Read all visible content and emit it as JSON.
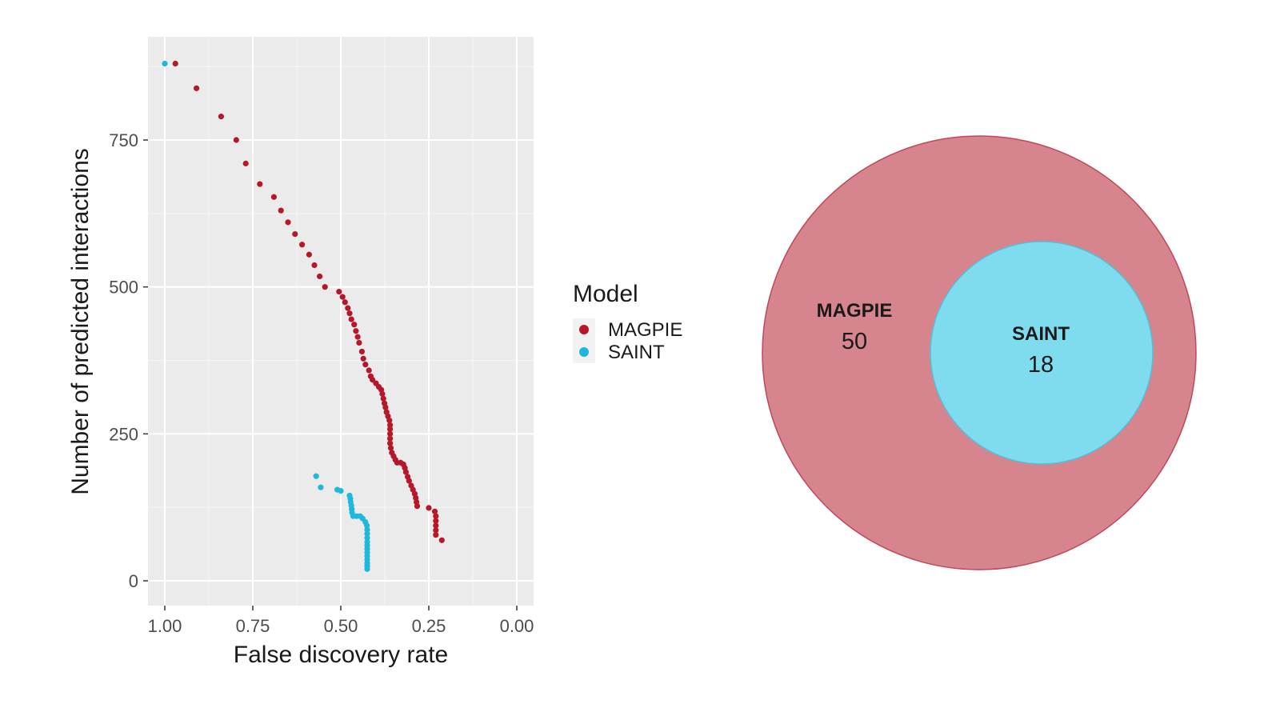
{
  "chart_data": [
    {
      "type": "scatter",
      "xlabel": "False discovery rate",
      "ylabel": "Number of predicted interactions",
      "xlim": [
        1.0,
        0.0
      ],
      "x_reversed": true,
      "ylim": [
        0,
        900
      ],
      "x_ticks": [
        1.0,
        0.75,
        0.5,
        0.25,
        0.0
      ],
      "x_tick_labels": [
        "1.00",
        "0.75",
        "0.50",
        "0.25",
        "0.00"
      ],
      "y_ticks": [
        0,
        250,
        500,
        750
      ],
      "y_tick_labels": [
        "0",
        "250",
        "500",
        "750"
      ],
      "grid": true,
      "legend_title": "Model",
      "legend_position": "right",
      "series": [
        {
          "name": "MAGPIE",
          "color": "#b5182b",
          "points": [
            [
              0.97,
              880
            ],
            [
              0.91,
              838
            ],
            [
              0.84,
              790
            ],
            [
              0.797,
              750
            ],
            [
              0.77,
              710
            ],
            [
              0.73,
              675
            ],
            [
              0.69,
              653
            ],
            [
              0.67,
              630
            ],
            [
              0.65,
              610
            ],
            [
              0.63,
              590
            ],
            [
              0.61,
              572
            ],
            [
              0.59,
              555
            ],
            [
              0.575,
              537
            ],
            [
              0.56,
              518
            ],
            [
              0.545,
              500
            ],
            [
              0.505,
              492
            ],
            [
              0.495,
              483
            ],
            [
              0.488,
              474
            ],
            [
              0.48,
              464
            ],
            [
              0.475,
              455
            ],
            [
              0.47,
              445
            ],
            [
              0.462,
              436
            ],
            [
              0.457,
              425
            ],
            [
              0.452,
              415
            ],
            [
              0.448,
              405
            ],
            [
              0.44,
              390
            ],
            [
              0.436,
              378
            ],
            [
              0.43,
              368
            ],
            [
              0.42,
              358
            ],
            [
              0.415,
              348
            ],
            [
              0.41,
              342
            ],
            [
              0.4,
              336
            ],
            [
              0.392,
              330
            ],
            [
              0.385,
              325
            ],
            [
              0.382,
              318
            ],
            [
              0.379,
              310
            ],
            [
              0.376,
              302
            ],
            [
              0.373,
              295
            ],
            [
              0.37,
              287
            ],
            [
              0.366,
              280
            ],
            [
              0.362,
              273
            ],
            [
              0.36,
              265
            ],
            [
              0.36,
              258
            ],
            [
              0.36,
              250
            ],
            [
              0.36,
              242
            ],
            [
              0.36,
              234
            ],
            [
              0.358,
              226
            ],
            [
              0.355,
              218
            ],
            [
              0.35,
              212
            ],
            [
              0.345,
              206
            ],
            [
              0.34,
              201
            ],
            [
              0.33,
              201
            ],
            [
              0.322,
              198
            ],
            [
              0.318,
              192
            ],
            [
              0.315,
              185
            ],
            [
              0.31,
              177
            ],
            [
              0.306,
              170
            ],
            [
              0.3,
              162
            ],
            [
              0.295,
              155
            ],
            [
              0.29,
              148
            ],
            [
              0.287,
              141
            ],
            [
              0.285,
              134
            ],
            [
              0.283,
              127
            ],
            [
              0.25,
              124
            ],
            [
              0.233,
              118
            ],
            [
              0.23,
              110
            ],
            [
              0.23,
              102
            ],
            [
              0.23,
              94
            ],
            [
              0.23,
              86
            ],
            [
              0.23,
              78
            ],
            [
              0.213,
              69
            ]
          ]
        },
        {
          "name": "SAINT",
          "color": "#1fb8dc",
          "points": [
            [
              1.0,
              880
            ],
            [
              0.57,
              178
            ],
            [
              0.557,
              159
            ],
            [
              0.51,
              155
            ],
            [
              0.5,
              153
            ],
            [
              0.475,
              145
            ],
            [
              0.473,
              140
            ],
            [
              0.472,
              134
            ],
            [
              0.47,
              128
            ],
            [
              0.469,
              122
            ],
            [
              0.468,
              116
            ],
            [
              0.465,
              110
            ],
            [
              0.455,
              110
            ],
            [
              0.445,
              110
            ],
            [
              0.438,
              106
            ],
            [
              0.43,
              100
            ],
            [
              0.426,
              94
            ],
            [
              0.425,
              87
            ],
            [
              0.425,
              80
            ],
            [
              0.425,
              73
            ],
            [
              0.425,
              66
            ],
            [
              0.425,
              60
            ],
            [
              0.425,
              54
            ],
            [
              0.425,
              48
            ],
            [
              0.425,
              42
            ],
            [
              0.425,
              36
            ],
            [
              0.425,
              30
            ],
            [
              0.425,
              25
            ],
            [
              0.425,
              20
            ]
          ]
        }
      ]
    },
    {
      "type": "venn",
      "sets": [
        {
          "name": "MAGPIE",
          "count": "50",
          "color": "#d6848e",
          "stroke": "#c0485a"
        },
        {
          "name": "SAINT",
          "count": "18",
          "color": "#7fdcee",
          "stroke": "#55bfd8"
        }
      ]
    }
  ]
}
